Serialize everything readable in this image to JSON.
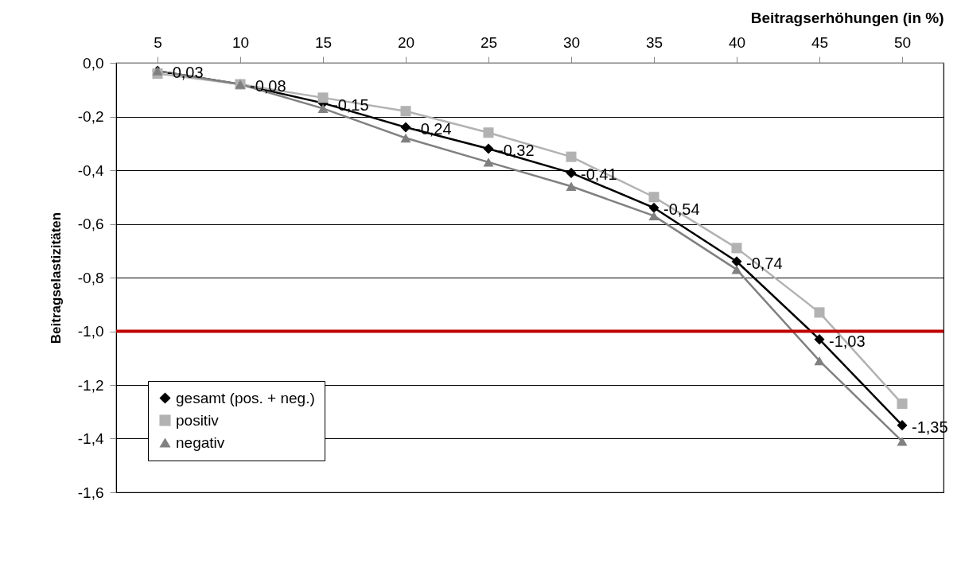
{
  "chart_data": {
    "type": "line",
    "xlabel": "Beitragserhöhungen  (in %)",
    "ylabel": "Beitragselastizitäten",
    "categories": [
      "5",
      "10",
      "15",
      "20",
      "25",
      "30",
      "35",
      "40",
      "45",
      "50"
    ],
    "ylim": [
      -1.6,
      0
    ],
    "yticks": [
      {
        "value": 0,
        "label": "0,0"
      },
      {
        "value": -0.2,
        "label": "-0,2"
      },
      {
        "value": -0.4,
        "label": "-0,4"
      },
      {
        "value": -0.6,
        "label": "-0,6"
      },
      {
        "value": -0.8,
        "label": "-0,8"
      },
      {
        "value": -1,
        "label": "-1,0"
      },
      {
        "value": -1.2,
        "label": "-1,2"
      },
      {
        "value": -1.4,
        "label": "-1,4"
      },
      {
        "value": -1.6,
        "label": "-1,6"
      }
    ],
    "grid": "y",
    "legend": "bottom left",
    "series": [
      {
        "name": "gesamt (pos. + neg.)",
        "color": "#000000",
        "marker": "diamond",
        "values": [
          -0.03,
          -0.08,
          -0.15,
          -0.24,
          -0.32,
          -0.41,
          -0.54,
          -0.74,
          -1.03,
          -1.35
        ],
        "value_labels": [
          "-0,03",
          "-0,08",
          "-0,15",
          "-0,24",
          "-0,32",
          "-0,41",
          "-0,54",
          "-0,74",
          "-1,03",
          "-1,35"
        ]
      },
      {
        "name": "positiv",
        "color": "#b2b2b2",
        "marker": "square",
        "values": [
          -0.04,
          -0.08,
          -0.13,
          -0.18,
          -0.26,
          -0.35,
          -0.5,
          -0.69,
          -0.93,
          -1.27
        ]
      },
      {
        "name": "negativ",
        "color": "#808080",
        "marker": "triangle",
        "values": [
          -0.03,
          -0.08,
          -0.17,
          -0.28,
          -0.37,
          -0.46,
          -0.57,
          -0.77,
          -1.11,
          -1.41
        ]
      }
    ],
    "ref_lines": [
      {
        "axis": "y",
        "value": -1,
        "color": "#c00000"
      }
    ]
  }
}
